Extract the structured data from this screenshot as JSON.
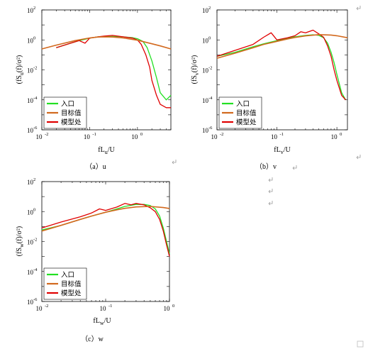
{
  "panels": [
    {
      "caption": "（a）u",
      "ylabel": "(fS_u(f)/σ²)",
      "xlabel": "fL_u/U",
      "xticks": [
        "10",
        "10",
        "10"
      ],
      "xtick_exps": [
        "-2",
        "-1",
        "0"
      ],
      "yticks": [
        "10",
        "10",
        "10",
        "10",
        "10"
      ],
      "ytick_exps": [
        "2",
        "0",
        "-2",
        "-4",
        "-6"
      ],
      "legend": [
        "入口",
        "目标值",
        "模型处"
      ]
    },
    {
      "caption": "（b）v",
      "ylabel": "(fS_v(f)/σ²)",
      "xlabel": "fL_v/U",
      "xticks": [
        "10",
        "10",
        "10"
      ],
      "xtick_exps": [
        "-2",
        "-1",
        "0"
      ],
      "yticks": [
        "10",
        "10",
        "10",
        "10",
        "10"
      ],
      "ytick_exps": [
        "2",
        "0",
        "-2",
        "-4",
        "-6"
      ],
      "legend": [
        "入口",
        "目标值",
        "模型处"
      ]
    },
    {
      "caption": "（c）w",
      "ylabel": "(fS_w(f)/σ²)",
      "xlabel": "fL_w/U",
      "xticks": [
        "10",
        "10",
        "10"
      ],
      "xtick_exps": [
        "-2",
        "-1",
        "0"
      ],
      "yticks": [
        "10",
        "10",
        "10",
        "10",
        "10"
      ],
      "ytick_exps": [
        "2",
        "0",
        "-2",
        "-4",
        "-6"
      ],
      "legend": [
        "入口",
        "目标值",
        "模型处"
      ]
    }
  ],
  "colors": {
    "inlet": "#22e022",
    "target": "#d2691e",
    "model": "#e00000"
  },
  "chart_data": [
    {
      "type": "line",
      "x_scale": "log",
      "y_scale": "log",
      "xlim": [
        0.01,
        5
      ],
      "ylim": [
        1e-06,
        100
      ],
      "legend_position": "bottom-left",
      "series": [
        {
          "name": "入口",
          "color": "inlet",
          "x": [
            0.02,
            0.04,
            0.06,
            0.08,
            0.1,
            0.15,
            0.2,
            0.3,
            0.5,
            0.8,
            1.0,
            1.3,
            1.6,
            2.0,
            2.5,
            3.0,
            4.0,
            5.0
          ],
          "y": [
            0.3,
            0.6,
            0.9,
            1.1,
            1.3,
            1.6,
            1.7,
            1.7,
            1.6,
            1.4,
            1.2,
            0.8,
            0.3,
            0.04,
            0.003,
            0.0003,
            0.0001,
            0.0002
          ]
        },
        {
          "name": "目标值",
          "color": "target",
          "x": [
            0.01,
            0.02,
            0.05,
            0.1,
            0.15,
            0.2,
            0.3,
            0.5,
            1.0,
            2.0,
            3.0,
            5.0
          ],
          "y": [
            0.25,
            0.45,
            0.9,
            1.35,
            1.55,
            1.6,
            1.55,
            1.35,
            0.95,
            0.55,
            0.4,
            0.25
          ]
        },
        {
          "name": "模型处",
          "color": "model",
          "x": [
            0.02,
            0.04,
            0.06,
            0.08,
            0.1,
            0.15,
            0.2,
            0.3,
            0.5,
            0.8,
            1.0,
            1.2,
            1.5,
            1.8,
            2.0,
            2.5,
            3.0,
            4.0,
            5.0
          ],
          "y": [
            0.3,
            0.6,
            0.9,
            0.6,
            1.3,
            1.6,
            1.8,
            2.0,
            1.6,
            1.3,
            1.0,
            0.5,
            0.1,
            0.015,
            0.002,
            0.0002,
            5e-05,
            3e-05,
            3e-05
          ]
        }
      ]
    },
    {
      "type": "line",
      "x_scale": "log",
      "y_scale": "log",
      "xlim": [
        0.01,
        1.5
      ],
      "ylim": [
        1e-06,
        100
      ],
      "legend_position": "bottom-left",
      "series": [
        {
          "name": "入口",
          "color": "inlet",
          "x": [
            0.01,
            0.02,
            0.04,
            0.06,
            0.1,
            0.15,
            0.2,
            0.3,
            0.4,
            0.5,
            0.6,
            0.7,
            0.8,
            0.9,
            1.0,
            1.2,
            1.4
          ],
          "y": [
            0.08,
            0.15,
            0.35,
            0.55,
            0.9,
            1.3,
            1.6,
            2.0,
            2.2,
            2.0,
            1.4,
            0.6,
            0.15,
            0.03,
            0.005,
            0.0003,
            0.0001
          ]
        },
        {
          "name": "目标值",
          "color": "target",
          "x": [
            0.01,
            0.02,
            0.04,
            0.06,
            0.1,
            0.15,
            0.2,
            0.3,
            0.5,
            0.8,
            1.0,
            1.5
          ],
          "y": [
            0.06,
            0.13,
            0.3,
            0.5,
            0.8,
            1.15,
            1.45,
            1.85,
            2.25,
            2.1,
            1.9,
            1.4
          ]
        },
        {
          "name": "模型处",
          "color": "model",
          "x": [
            0.01,
            0.02,
            0.04,
            0.06,
            0.08,
            0.1,
            0.15,
            0.2,
            0.25,
            0.3,
            0.4,
            0.5,
            0.6,
            0.7,
            0.8,
            0.9,
            1.0,
            1.2,
            1.4
          ],
          "y": [
            0.08,
            0.2,
            0.5,
            1.5,
            3.0,
            1.0,
            1.4,
            1.9,
            3.5,
            3.0,
            4.5,
            2.5,
            1.5,
            0.4,
            0.08,
            0.01,
            0.002,
            0.0002,
            0.0001
          ]
        }
      ]
    },
    {
      "type": "line",
      "x_scale": "log",
      "y_scale": "log",
      "xlim": [
        0.01,
        1.0
      ],
      "ylim": [
        1e-06,
        100
      ],
      "legend_position": "bottom-left",
      "series": [
        {
          "name": "入口",
          "color": "inlet",
          "x": [
            0.01,
            0.02,
            0.04,
            0.06,
            0.1,
            0.15,
            0.2,
            0.3,
            0.4,
            0.5,
            0.6,
            0.7,
            0.8,
            0.9,
            1.0
          ],
          "y": [
            0.06,
            0.12,
            0.3,
            0.5,
            0.9,
            1.5,
            2.2,
            3.0,
            3.0,
            2.5,
            1.5,
            0.5,
            0.08,
            0.01,
            0.0015
          ]
        },
        {
          "name": "目标值",
          "color": "target",
          "x": [
            0.01,
            0.02,
            0.04,
            0.06,
            0.1,
            0.15,
            0.2,
            0.3,
            0.5,
            0.8,
            1.0
          ],
          "y": [
            0.05,
            0.12,
            0.3,
            0.5,
            0.9,
            1.3,
            1.65,
            2.05,
            2.2,
            1.85,
            1.6
          ]
        },
        {
          "name": "模型处",
          "color": "model",
          "x": [
            0.01,
            0.02,
            0.04,
            0.06,
            0.08,
            0.1,
            0.15,
            0.2,
            0.25,
            0.3,
            0.4,
            0.5,
            0.6,
            0.7,
            0.8,
            0.9,
            1.0
          ],
          "y": [
            0.08,
            0.2,
            0.45,
            0.8,
            1.5,
            1.2,
            2.0,
            3.5,
            2.8,
            3.5,
            2.8,
            1.8,
            1.0,
            0.3,
            0.05,
            0.006,
            0.001
          ]
        }
      ]
    }
  ]
}
